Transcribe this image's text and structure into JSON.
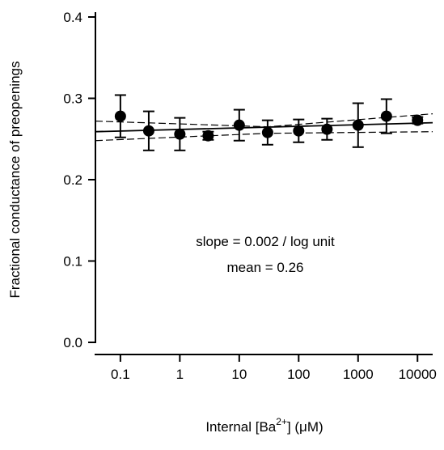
{
  "chart_data": {
    "type": "scatter",
    "y_label": "Fractional conductance of preopenings",
    "x_label": {
      "text": "Internal [Ba",
      "sup": "2+",
      "end": "] (μM)"
    },
    "annotations": [
      "slope = 0.002 / log unit",
      "mean = 0.26"
    ],
    "x": [
      0.1,
      0.3,
      1,
      3,
      10,
      30,
      100,
      300,
      1000,
      3000,
      10000
    ],
    "values": [
      0.278,
      0.26,
      0.256,
      0.254,
      0.267,
      0.258,
      0.26,
      0.262,
      0.267,
      0.278,
      0.273
    ],
    "errors": [
      0.026,
      0.024,
      0.02,
      0.005,
      0.019,
      0.015,
      0.014,
      0.013,
      0.027,
      0.021,
      0.004
    ],
    "color": "#000000",
    "lines": [
      {
        "x": [
          0.038,
          18000
        ],
        "values": [
          0.259,
          0.27
        ],
        "dash": false
      },
      {
        "x": [
          0.038,
          30,
          18000
        ],
        "values": [
          0.272,
          0.265,
          0.281
        ],
        "dash": true
      },
      {
        "x": [
          0.038,
          30,
          18000
        ],
        "values": [
          0.248,
          0.257,
          0.259
        ],
        "dash": true
      }
    ],
    "xscale": "log",
    "xlim": [
      0.038,
      18000
    ],
    "xticks": [
      0.1,
      1,
      10,
      100,
      1000,
      10000
    ],
    "ylim": [
      0,
      0.4
    ],
    "yticks": [
      {
        "value": 0,
        "label": "0.0"
      },
      0.1,
      0.2,
      0.3,
      0.4
    ]
  }
}
